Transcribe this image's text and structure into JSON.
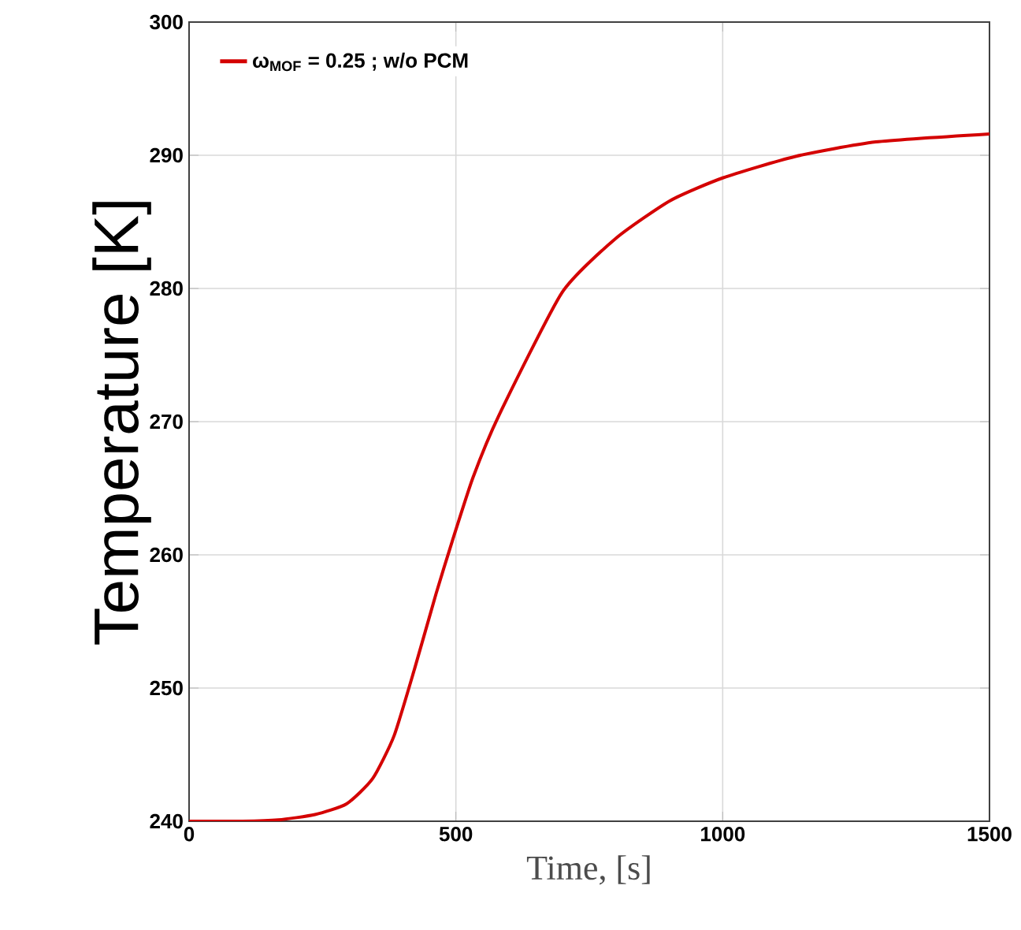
{
  "chart_data": {
    "type": "line",
    "xlabel": "Time, [s]",
    "ylabel": "Temperature [K]",
    "xlim": [
      0,
      1500
    ],
    "ylim": [
      240,
      300
    ],
    "xticks": [
      0,
      500,
      1000,
      1500
    ],
    "yticks": [
      240,
      250,
      260,
      270,
      280,
      290,
      300
    ],
    "grid": true,
    "legend": "top left",
    "marker": "none",
    "line_style": "solid",
    "series": [
      {
        "name": "ω$_{MOF}$ = 0.25 ; w/o PCM",
        "color": "#d40000",
        "x": [
          0,
          100,
          167,
          236,
          295,
          344,
          384,
          423,
          463,
          493,
          532,
          581,
          699,
          801,
          902,
          1000,
          1135,
          1287,
          1500
        ],
        "values": [
          240,
          240,
          240.1,
          240.5,
          241.3,
          243.2,
          246.4,
          251.5,
          257.1,
          261.0,
          265.8,
          270.5,
          279.7,
          283.8,
          286.6,
          288.3,
          289.9,
          291.0,
          291.6
        ]
      }
    ]
  }
}
